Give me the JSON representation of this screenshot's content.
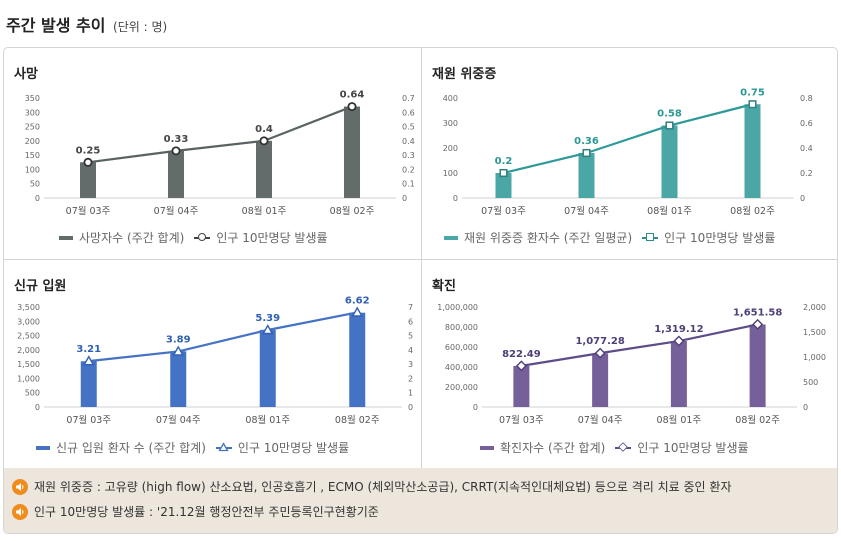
{
  "header": {
    "title": "주간 발생 추이",
    "unit": "(단위 : 명)"
  },
  "colors": {
    "death": "#636b6b",
    "severe": "#4aa7a6",
    "admit": "#4472c4",
    "confirmed": "#76609a",
    "note_icon": "#f08c1e"
  },
  "panels": [
    {
      "title": "사망",
      "legend_bar": "사망자수 (주간 합계)",
      "legend_line": "인구 10만명당 발생률"
    },
    {
      "title": "재원 위중증",
      "legend_bar": "재원 위중증 환자수 (주간 일평균)",
      "legend_line": "인구 10만명당 발생률"
    },
    {
      "title": "신규 입원",
      "legend_bar": "신규 입원 환자 수 (주간 합계)",
      "legend_line": "인구 10만명당 발생률"
    },
    {
      "title": "확진",
      "legend_bar": "확진자수 (주간 합계)",
      "legend_line": "인구 10만명당 발생률"
    }
  ],
  "chart_data": [
    {
      "type": "bar",
      "title": "사망",
      "categories": [
        "07월 03주",
        "07월 04주",
        "08월 01주",
        "08월 02주"
      ],
      "series": [
        {
          "name": "사망자수 (주간 합계)",
          "type": "bar",
          "axis": "left",
          "values": [
            125,
            165,
            200,
            320
          ]
        },
        {
          "name": "인구 10만명당 발생률",
          "type": "line",
          "axis": "right",
          "values": [
            0.25,
            0.33,
            0.4,
            0.64
          ],
          "labels": [
            "0.25",
            "0.33",
            "0.4",
            "0.64"
          ]
        }
      ],
      "y_left": {
        "ticks": [
          "0",
          "50",
          "100",
          "150",
          "200",
          "250",
          "300",
          "350"
        ],
        "lim": [
          0,
          350
        ]
      },
      "y_right": {
        "ticks": [
          "0",
          "0.1",
          "0.2",
          "0.3",
          "0.4",
          "0.5",
          "0.6",
          "0.7"
        ],
        "lim": [
          0,
          0.7
        ]
      },
      "marker": "circle"
    },
    {
      "type": "bar",
      "title": "재원 위중증",
      "categories": [
        "07월 03주",
        "07월 04주",
        "08월 01주",
        "08월 02주"
      ],
      "series": [
        {
          "name": "재원 위중증 환자수 (주간 일평균)",
          "type": "bar",
          "axis": "left",
          "values": [
            100,
            180,
            290,
            375
          ]
        },
        {
          "name": "인구 10만명당 발생률",
          "type": "line",
          "axis": "right",
          "values": [
            0.2,
            0.36,
            0.58,
            0.75
          ],
          "labels": [
            "0.2",
            "0.36",
            "0.58",
            "0.75"
          ]
        }
      ],
      "y_left": {
        "ticks": [
          "0",
          "100",
          "200",
          "300",
          "400"
        ],
        "lim": [
          0,
          400
        ]
      },
      "y_right": {
        "ticks": [
          "0",
          "0.2",
          "0.4",
          "0.6",
          "0.8"
        ],
        "lim": [
          0,
          0.8
        ]
      },
      "marker": "square"
    },
    {
      "type": "bar",
      "title": "신규 입원",
      "categories": [
        "07월 03주",
        "07월 04주",
        "08월 01주",
        "08월 02주"
      ],
      "series": [
        {
          "name": "신규 입원 환자 수 (주간 합계)",
          "type": "bar",
          "axis": "left",
          "values": [
            1600,
            1950,
            2700,
            3300
          ]
        },
        {
          "name": "인구 10만명당 발생률",
          "type": "line",
          "axis": "right",
          "values": [
            3.21,
            3.89,
            5.39,
            6.62
          ],
          "labels": [
            "3.21",
            "3.89",
            "5.39",
            "6.62"
          ]
        }
      ],
      "y_left": {
        "ticks": [
          "0",
          "500",
          "1,000",
          "1,500",
          "2,000",
          "2,500",
          "3,000",
          "3,500"
        ],
        "lim": [
          0,
          3500
        ]
      },
      "y_right": {
        "ticks": [
          "0",
          "1",
          "2",
          "3",
          "4",
          "5",
          "6",
          "7"
        ],
        "lim": [
          0,
          7
        ]
      },
      "marker": "triangle"
    },
    {
      "type": "bar",
      "title": "확진",
      "categories": [
        "07월 03주",
        "07월 04주",
        "08월 01주",
        "08월 02주"
      ],
      "series": [
        {
          "name": "확진자수 (주간 합계)",
          "type": "bar",
          "axis": "left",
          "values": [
            410000,
            535000,
            660000,
            825000
          ]
        },
        {
          "name": "인구 10만명당 발생률",
          "type": "line",
          "axis": "right",
          "values": [
            822.49,
            1077.28,
            1319.12,
            1651.58
          ],
          "labels": [
            "822.49",
            "1,077.28",
            "1,319.12",
            "1,651.58"
          ]
        }
      ],
      "y_left": {
        "ticks": [
          "0",
          "200,000",
          "400,000",
          "600,000",
          "800,000",
          "1,000,000"
        ],
        "lim": [
          0,
          1000000
        ]
      },
      "y_right": {
        "ticks": [
          "0",
          "500",
          "1,000",
          "1,500",
          "2,000"
        ],
        "lim": [
          0,
          2000
        ]
      },
      "marker": "diamond"
    }
  ],
  "notes": [
    {
      "text": "재원 위중증 : 고유량 (high flow) 산소요법, 인공호흡기 , ECMO (체외막산소공급), CRRT(지속적인대체요법) 등으로 격리 치료 중인 환자"
    },
    {
      "text": "인구 10만명당 발생률 : '21.12월 행정안전부 주민등록인구현황기준"
    }
  ]
}
